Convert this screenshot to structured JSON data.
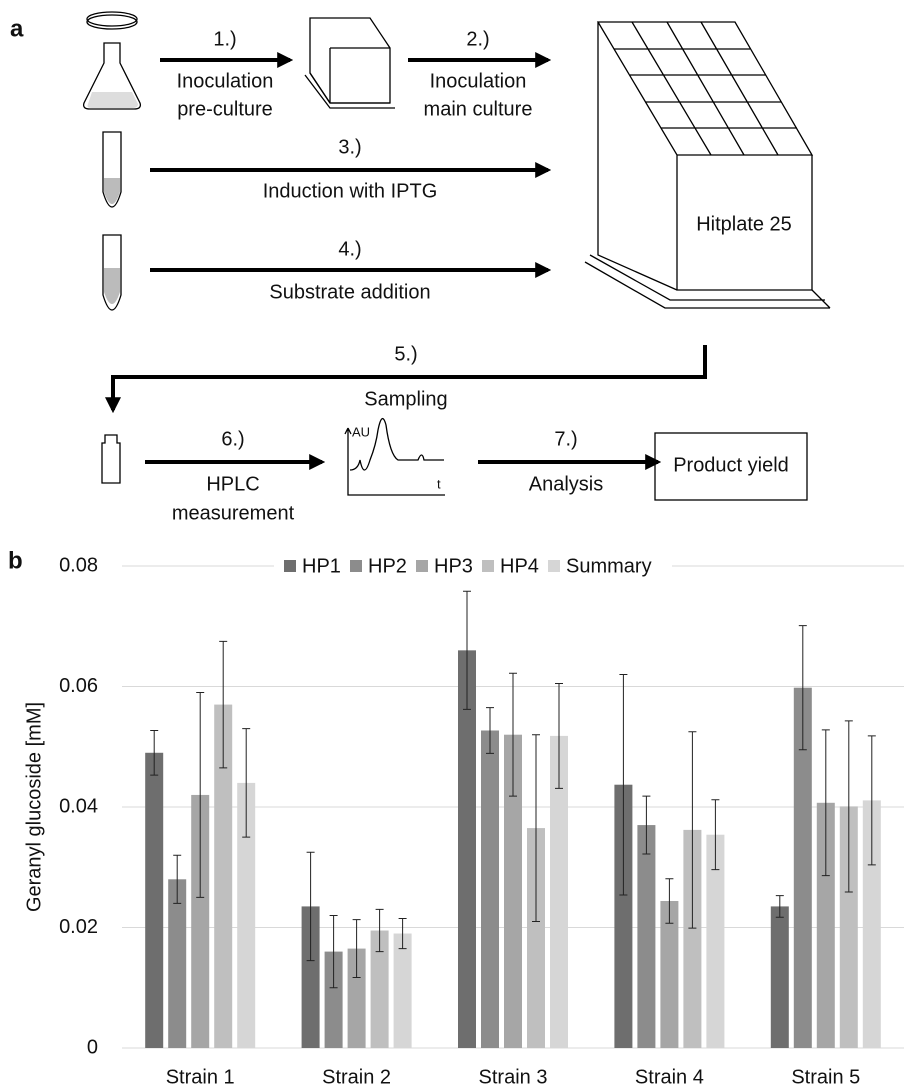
{
  "diagram": {
    "panel_label": "a",
    "step1": "1.)",
    "step1_text": [
      "Inoculation",
      "pre-culture"
    ],
    "step2": "2.)",
    "step2_text": [
      "Inoculation",
      "main culture"
    ],
    "step3": "3.)",
    "step3_text": "Induction with IPTG",
    "step4": "4.)",
    "step4_text": "Substrate addition",
    "plate": "Hitplate 25",
    "step5": "5.)",
    "step5_text": "Sampling",
    "step6": "6.)",
    "step6_text": [
      "HPLC",
      "measurement"
    ],
    "chrom_y": "AU",
    "chrom_x": "t",
    "step7": "7.)",
    "step7_text": "Analysis",
    "result": "Product yield"
  },
  "chart_data": {
    "type": "bar",
    "panel_label": "b",
    "y_label": "Geranyl glucoside [mM]",
    "categories": [
      "Strain 1",
      "Strain 2",
      "Strain 3",
      "Strain 4",
      "Strain 5"
    ],
    "series": [
      {
        "name": "HP1",
        "color": "#6e6e6e",
        "values": [
          0.049,
          0.0235,
          0.066,
          0.0437,
          0.0235
        ],
        "errors": [
          0.0037,
          0.009,
          0.0098,
          0.0183,
          0.0018
        ]
      },
      {
        "name": "HP2",
        "color": "#8c8c8c",
        "values": [
          0.028,
          0.016,
          0.0527,
          0.037,
          0.0598
        ],
        "errors": [
          0.004,
          0.006,
          0.0038,
          0.0048,
          0.0103
        ]
      },
      {
        "name": "HP3",
        "color": "#a6a6a6",
        "values": [
          0.042,
          0.0165,
          0.052,
          0.0244,
          0.0407
        ],
        "errors": [
          0.017,
          0.0048,
          0.0102,
          0.0037,
          0.0121
        ]
      },
      {
        "name": "HP4",
        "color": "#bfbfbf",
        "values": [
          0.057,
          0.0195,
          0.0365,
          0.0362,
          0.0401
        ],
        "errors": [
          0.0105,
          0.0035,
          0.0155,
          0.0163,
          0.0142
        ]
      },
      {
        "name": "Summary",
        "color": "#d6d6d6",
        "values": [
          0.044,
          0.019,
          0.0518,
          0.0354,
          0.0411
        ],
        "errors": [
          0.009,
          0.0025,
          0.0087,
          0.0058,
          0.0107
        ]
      }
    ],
    "ylim": [
      0,
      0.08
    ],
    "yticks": [
      0,
      0.02,
      0.04,
      0.06,
      0.08
    ],
    "grid": true,
    "legend": "top"
  }
}
